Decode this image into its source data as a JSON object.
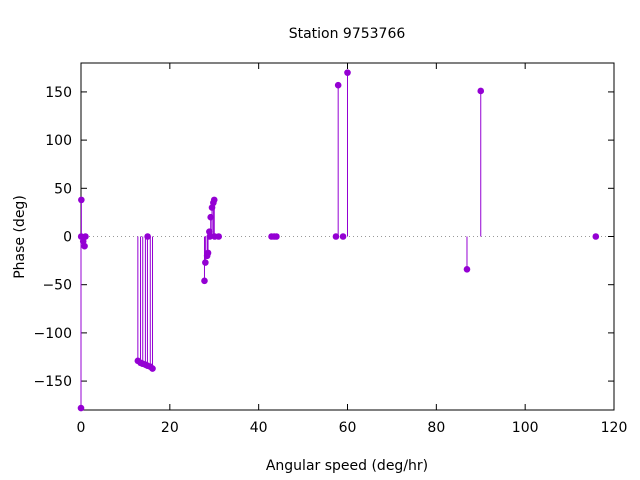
{
  "chart_data": {
    "type": "scatter",
    "style": "impulses-with-points",
    "title": "Station 9753766",
    "xlabel": "Angular speed (deg/hr)",
    "ylabel": "Phase (deg)",
    "xlim": [
      0,
      120
    ],
    "ylim": [
      -180,
      180
    ],
    "x_ticks": [
      0,
      20,
      40,
      60,
      80,
      100,
      120
    ],
    "y_ticks": [
      -150,
      -100,
      -50,
      0,
      50,
      100,
      150
    ],
    "zero_line": "dotted",
    "grid": false,
    "legend": "none",
    "color": "#9400d3",
    "series": [
      {
        "x": [
          0.0,
          0.04,
          0.08,
          0.5,
          0.8,
          1.0,
          12.8,
          13.4,
          13.9,
          14.5,
          14.96,
          15.0,
          15.6,
          16.1,
          27.8,
          28.0,
          28.4,
          28.6,
          28.9,
          29.0,
          29.2,
          29.5,
          29.8,
          30.0,
          30.1,
          31.0,
          42.9,
          43.5,
          44.0,
          57.4,
          57.9,
          59.0,
          60.0,
          86.9,
          90.0,
          115.9
        ],
        "y": [
          -178,
          0,
          38,
          -5,
          -10,
          0,
          -129,
          -131,
          -132,
          -133,
          -134,
          0,
          -135,
          -137,
          -46,
          -27,
          -20,
          -17,
          5,
          0,
          20,
          30,
          35,
          38,
          0,
          0,
          0,
          0,
          0,
          0,
          157,
          0,
          170,
          -34,
          151,
          0
        ]
      }
    ]
  }
}
